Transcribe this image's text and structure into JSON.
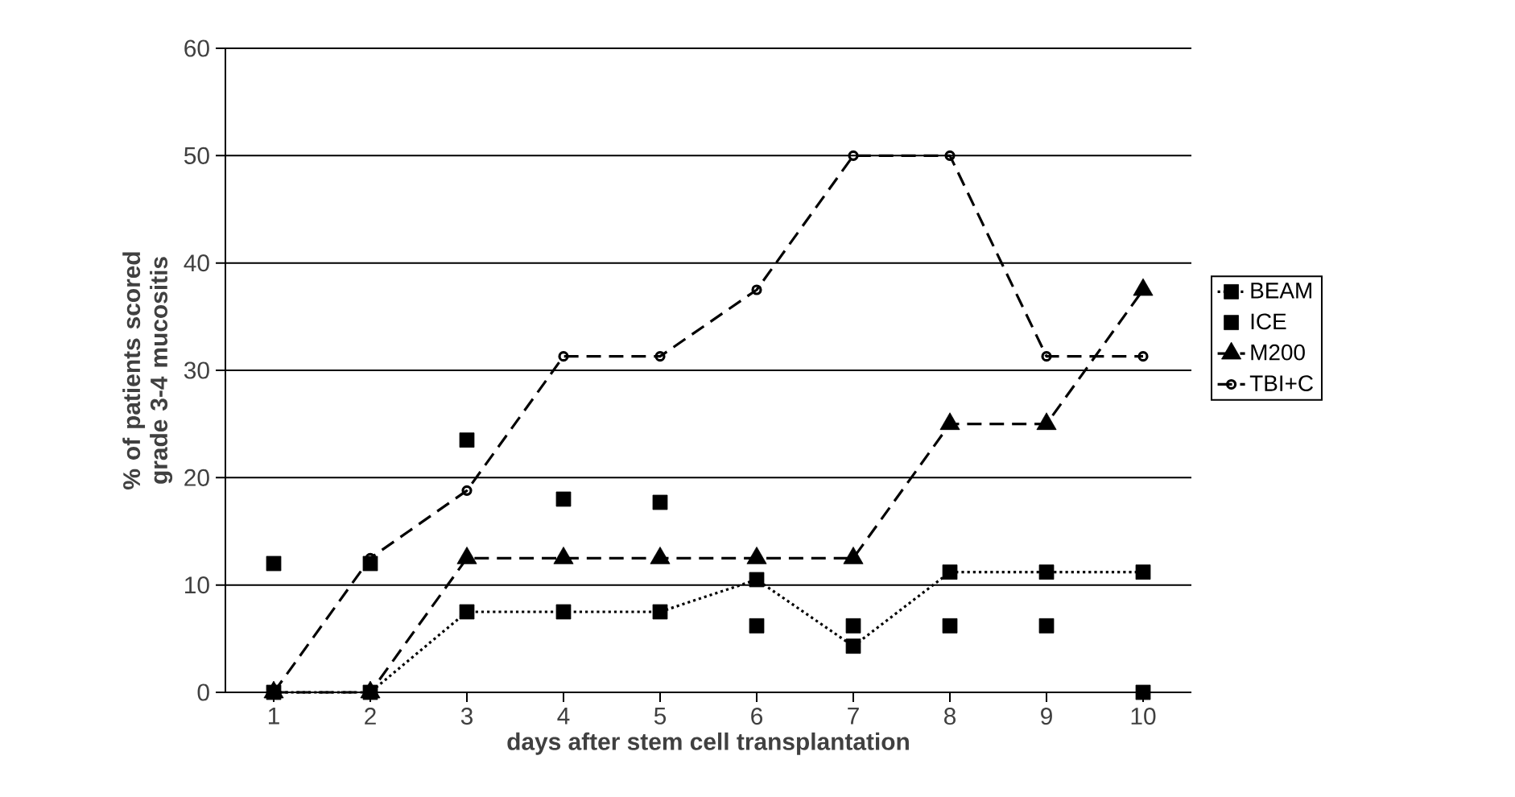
{
  "chart_data": {
    "type": "line",
    "xlabel": "days after stem cell transplantation",
    "ylabel": "% of patients scored grade 3-4 mucositis",
    "x": [
      1,
      2,
      3,
      4,
      5,
      6,
      7,
      8,
      9,
      10
    ],
    "xlim": [
      0.5,
      10.5
    ],
    "xticks": [
      1,
      2,
      3,
      4,
      5,
      6,
      7,
      8,
      9,
      10
    ],
    "ylim": [
      0,
      60
    ],
    "yticks": [
      0,
      10,
      20,
      30,
      40,
      50,
      60
    ],
    "grid": "y",
    "legend": "right",
    "series": [
      {
        "name": "BEAM",
        "color": "#000000",
        "line_style": "dotted",
        "marker": "square",
        "values": [
          0,
          0,
          7.5,
          7.5,
          7.5,
          10.5,
          4.3,
          11.2,
          11.2,
          11.2
        ]
      },
      {
        "name": "ICE",
        "type": "scatter",
        "color": "#000000",
        "marker": "square",
        "values": [
          12,
          12,
          23.5,
          18,
          17.7,
          6.2,
          6.2,
          6.2,
          6.2,
          0
        ]
      },
      {
        "name": "M200",
        "color": "#000000",
        "line_style": "dashed",
        "marker": "triangle",
        "values": [
          0,
          0,
          12.5,
          12.5,
          12.5,
          12.5,
          12.5,
          25,
          25,
          37.5
        ]
      },
      {
        "name": "TBI+C",
        "color": "#000000",
        "line_style": "dashed",
        "marker": "circle",
        "values": [
          0,
          12.5,
          18.8,
          31.3,
          31.3,
          37.5,
          50,
          50,
          31.3,
          31.3
        ]
      }
    ]
  }
}
